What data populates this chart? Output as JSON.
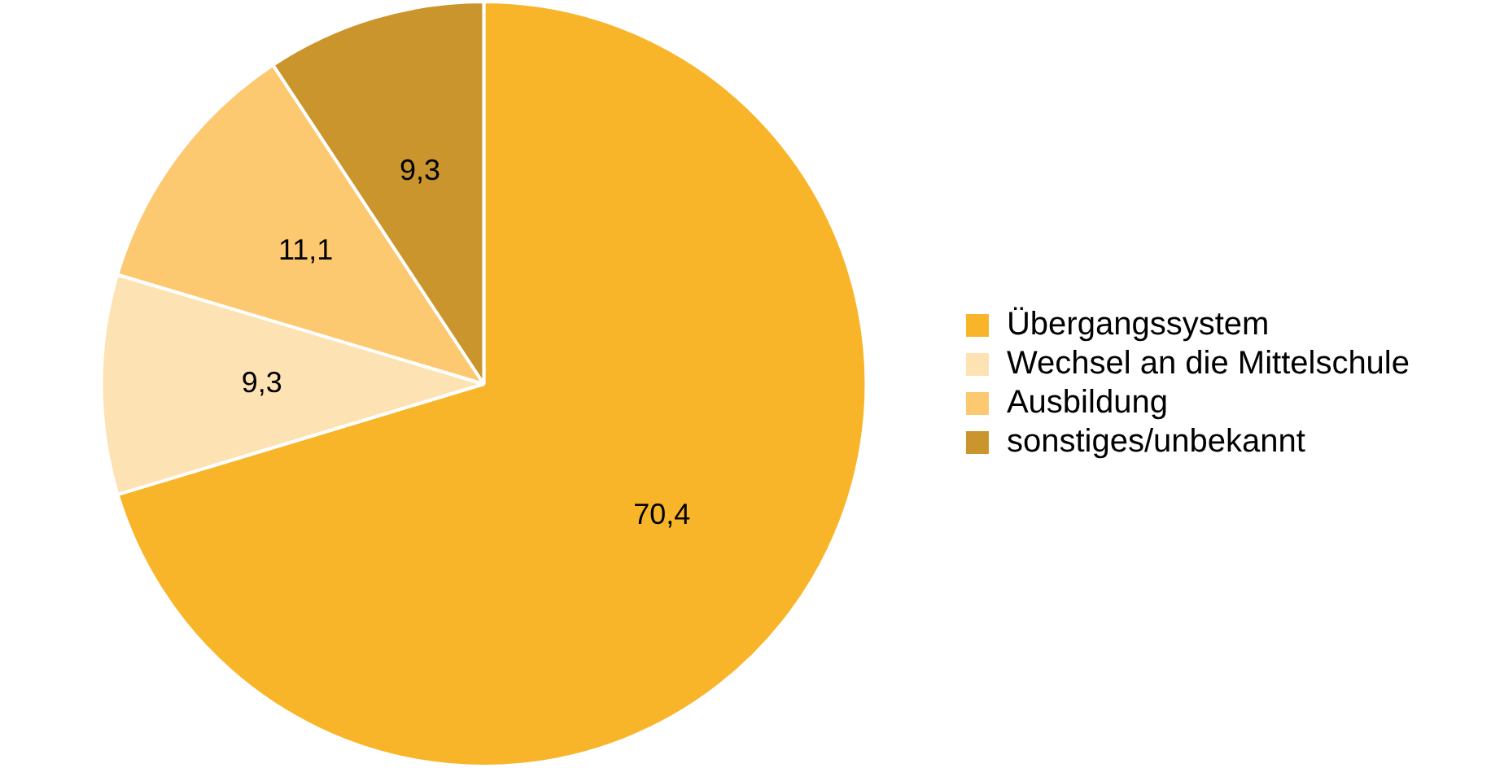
{
  "chart_data": {
    "type": "pie",
    "categories": [
      "Übergangssystem",
      "Wechsel an die Mittelschule",
      "Ausbildung",
      "sonstiges/unbekannt"
    ],
    "values": [
      70.4,
      9.3,
      11.1,
      9.3
    ],
    "value_labels": [
      "70,4",
      "9,3",
      "11,1",
      "9,3"
    ],
    "colors": [
      "#f9b52a",
      "#fde2b4",
      "#fcc870",
      "#c9952c"
    ],
    "legend": "right"
  }
}
